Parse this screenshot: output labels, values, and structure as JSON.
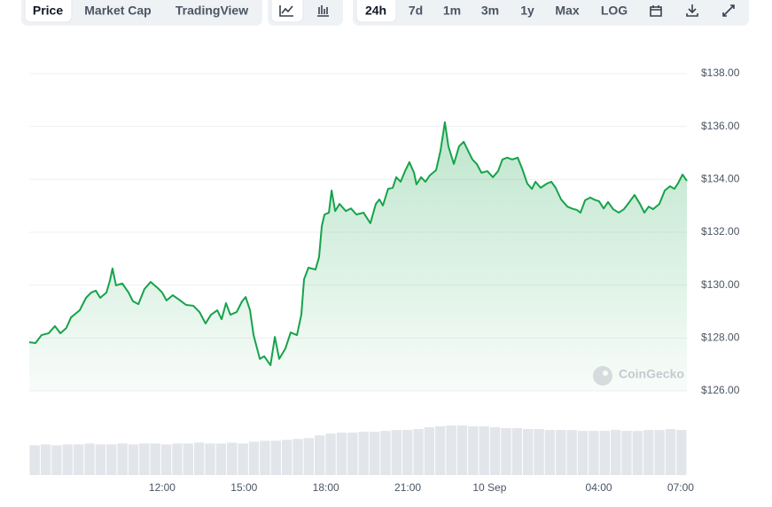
{
  "toolbar": {
    "tabs": [
      "Price",
      "Market Cap",
      "TradingView"
    ],
    "ranges": [
      "24h",
      "7d",
      "1m",
      "3m",
      "1y",
      "Max",
      "LOG"
    ]
  },
  "watermark": "CoinGecko",
  "chart_data": [
    {
      "type": "line",
      "color": "#16a34a",
      "fill": true,
      "x": [
        7.13,
        7.36,
        7.58,
        7.84,
        8.07,
        8.27,
        8.49,
        8.66,
        8.98,
        9.21,
        9.4,
        9.57,
        9.73,
        9.96,
        10.09,
        10.18,
        10.31,
        10.54,
        10.77,
        10.93,
        11.13,
        11.35,
        11.58,
        11.84,
        12.0,
        12.16,
        12.39,
        12.62,
        12.88,
        13.14,
        13.37,
        13.59,
        13.79,
        14.02,
        14.18,
        14.34,
        14.5,
        14.73,
        14.93,
        15.06,
        15.22,
        15.35,
        15.58,
        15.74,
        15.97,
        16.13,
        16.29,
        16.52,
        16.71,
        16.94,
        17.1,
        17.2,
        17.36,
        17.62,
        17.75,
        17.85,
        17.95,
        18.11,
        18.21,
        18.34,
        18.5,
        18.73,
        18.92,
        19.12,
        19.38,
        19.63,
        19.83,
        19.96,
        20.09,
        20.28,
        20.45,
        20.58,
        20.74,
        20.9,
        21.06,
        21.23,
        21.32,
        21.49,
        21.65,
        21.81,
        22.04,
        22.2,
        22.36,
        22.49,
        22.69,
        22.88,
        23.05,
        23.21,
        23.37,
        23.53,
        23.7,
        23.92,
        24.12,
        24.31,
        24.47,
        24.64,
        24.83,
        25.03,
        25.19,
        25.38,
        25.55,
        25.68,
        25.87,
        26.1,
        26.26,
        26.42,
        26.62,
        26.85,
        27.01,
        27.2,
        27.33,
        27.5,
        27.69,
        27.82,
        28.01,
        28.18,
        28.34,
        28.53,
        28.73,
        28.92,
        29.12,
        29.31,
        29.51,
        29.67,
        29.83,
        29.99,
        30.22,
        30.42,
        30.61,
        30.77,
        30.9,
        31.07,
        31.23
      ],
      "values": [
        127.84,
        127.81,
        128.11,
        128.18,
        128.45,
        128.18,
        128.38,
        128.78,
        129.05,
        129.52,
        129.72,
        129.79,
        129.52,
        129.72,
        130.19,
        130.63,
        129.99,
        130.06,
        129.72,
        129.39,
        129.28,
        129.85,
        130.12,
        129.89,
        129.72,
        129.42,
        129.62,
        129.45,
        129.25,
        129.22,
        128.98,
        128.55,
        128.88,
        129.05,
        128.71,
        129.32,
        128.88,
        128.98,
        129.39,
        129.55,
        129.05,
        128.11,
        127.21,
        127.31,
        126.97,
        128.04,
        127.21,
        127.61,
        128.21,
        128.11,
        128.88,
        130.22,
        130.66,
        130.59,
        131.06,
        132.23,
        132.67,
        132.74,
        133.58,
        132.8,
        133.07,
        132.8,
        132.9,
        132.67,
        132.74,
        132.34,
        133.07,
        133.24,
        133.01,
        133.64,
        133.68,
        134.08,
        133.91,
        134.31,
        134.65,
        134.25,
        133.81,
        134.08,
        133.91,
        134.15,
        134.35,
        135.08,
        136.16,
        135.25,
        134.58,
        135.25,
        135.42,
        135.08,
        134.75,
        134.58,
        134.25,
        134.31,
        134.08,
        134.31,
        134.75,
        134.82,
        134.75,
        134.82,
        134.41,
        133.84,
        133.64,
        133.91,
        133.68,
        133.84,
        133.91,
        133.68,
        133.24,
        132.97,
        132.9,
        132.84,
        132.74,
        133.21,
        133.31,
        133.24,
        133.17,
        132.9,
        133.14,
        132.87,
        132.74,
        132.87,
        133.14,
        133.41,
        133.07,
        132.74,
        132.97,
        132.87,
        133.07,
        133.58,
        133.74,
        133.64,
        133.84,
        134.18,
        133.94
      ],
      "xlim": [
        7.13,
        31.23
      ],
      "xticks": [
        {
          "value": 12,
          "label": "12:00"
        },
        {
          "value": 15,
          "label": "15:00"
        },
        {
          "value": 18,
          "label": "18:00"
        },
        {
          "value": 21,
          "label": "21:00"
        },
        {
          "value": 24,
          "label": "10 Sep"
        },
        {
          "value": 28,
          "label": "04:00"
        },
        {
          "value": 31,
          "label": "07:00"
        }
      ],
      "ylim": [
        126,
        138
      ],
      "yticks": [
        {
          "value": 126,
          "label": "$126.00"
        },
        {
          "value": 128,
          "label": "$128.00"
        },
        {
          "value": 130,
          "label": "$130.00"
        },
        {
          "value": 132,
          "label": "$132.00"
        },
        {
          "value": 134,
          "label": "$134.00"
        },
        {
          "value": 136,
          "label": "$136.00"
        },
        {
          "value": 138,
          "label": "$138.00"
        }
      ],
      "grid": true
    },
    {
      "type": "bar",
      "color": "#e2e5ea",
      "values": [
        33,
        34,
        33,
        34,
        34,
        35,
        34,
        34,
        35,
        34,
        35,
        35,
        34,
        35,
        35,
        36,
        35,
        35,
        36,
        35,
        37,
        38,
        38,
        39,
        40,
        41,
        44,
        46,
        47,
        47,
        48,
        48,
        49,
        50,
        50,
        51,
        53,
        54,
        55,
        55,
        54,
        54,
        53,
        52,
        52,
        51,
        51,
        50,
        50,
        50,
        49,
        49,
        49,
        50,
        49,
        49,
        50,
        50,
        51,
        50
      ]
    }
  ]
}
